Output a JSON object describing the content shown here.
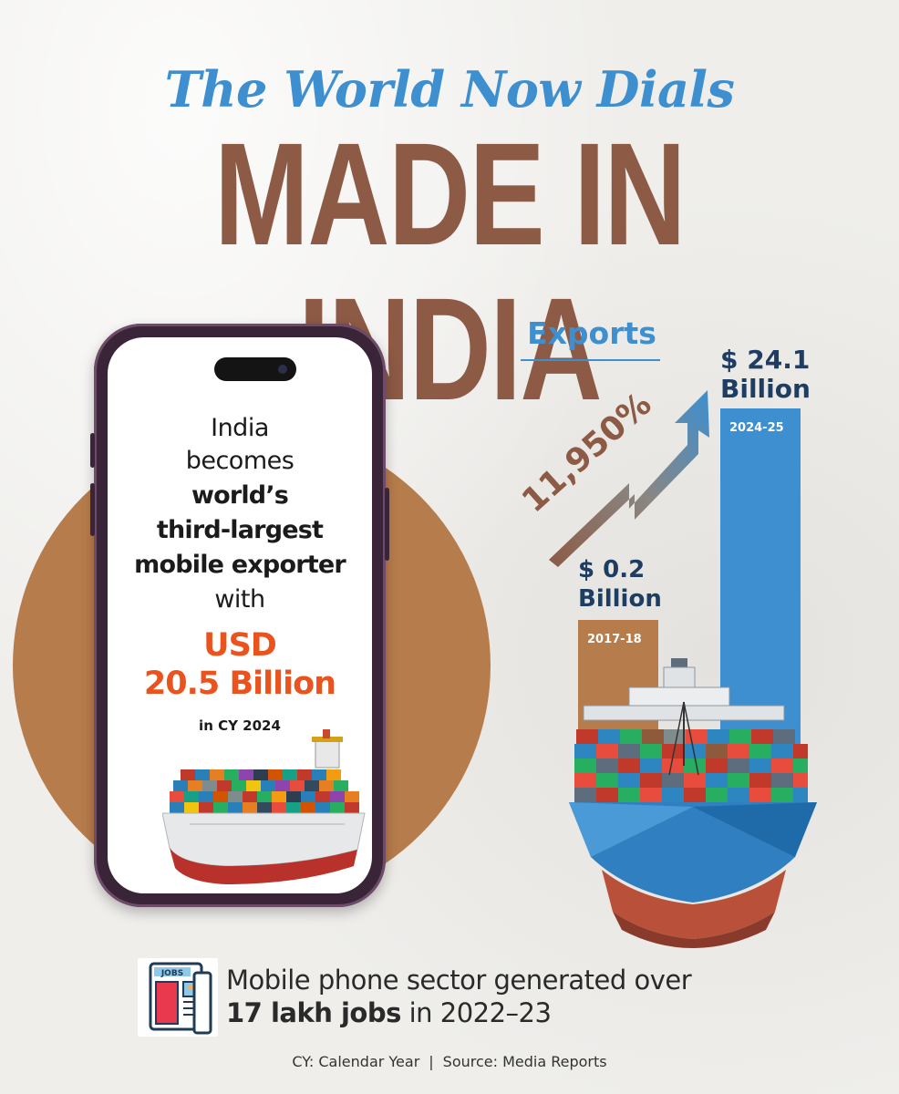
{
  "header": {
    "subtitle": "The World Now Dials",
    "title": "MADE IN INDIA"
  },
  "phone": {
    "lines": [
      "India",
      "becomes",
      "world’s",
      "third-largest",
      "mobile exporter",
      "with"
    ],
    "amount_line1": "USD",
    "amount_line2": "20.5 Billion",
    "period": "in CY 2024"
  },
  "chart_data": {
    "type": "bar",
    "title": "Exports",
    "categories": [
      "2017-18",
      "2024-25"
    ],
    "values": [
      0.2,
      24.1
    ],
    "value_labels": [
      {
        "amount": "$ 0.2",
        "unit": "Billion"
      },
      {
        "amount": "$ 24.1",
        "unit": "Billion"
      }
    ],
    "unit": "USD Billion",
    "growth_label": "11,950%",
    "colors": {
      "bar_2017": "#b67c4b",
      "bar_2024": "#3d8fd0",
      "arrow_start": "#8c5a45",
      "arrow_end": "#3d8fd0"
    }
  },
  "jobs": {
    "icon_text": "JOBS",
    "line1": "Mobile phone sector generated over",
    "line2_bold": "17 lakh jobs",
    "line2_rest": " in 2022–23"
  },
  "footer": {
    "note": "CY: Calendar Year",
    "separator": "|",
    "source": "Source: Media Reports"
  },
  "colors": {
    "brown": "#8c5a45",
    "blue": "#3d8fd0",
    "orange": "#ea531d",
    "circle": "#b67c4b"
  }
}
